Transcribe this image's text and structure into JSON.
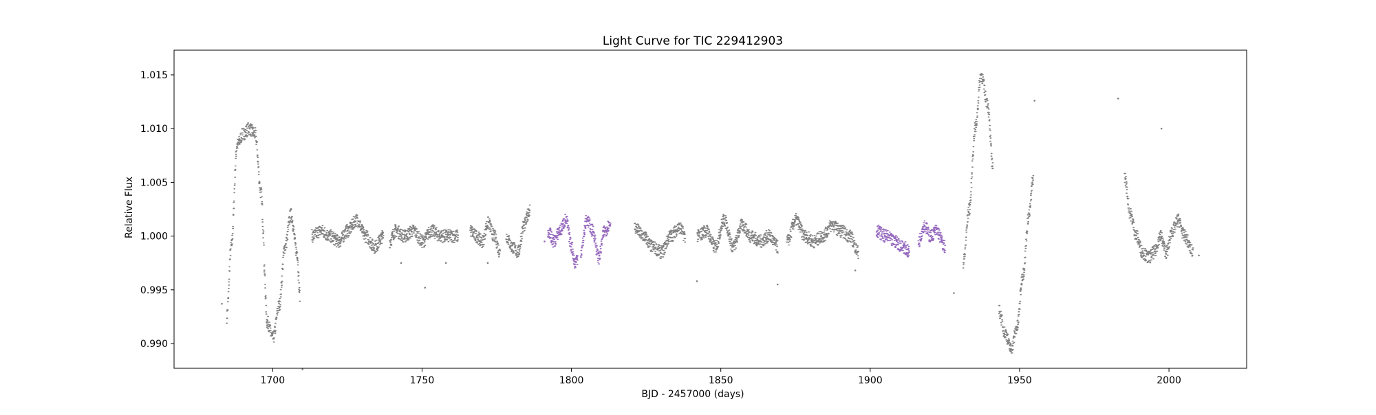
{
  "chart_data": {
    "type": "scatter",
    "title": "Light Curve for TIC 229412903",
    "xlabel": "BJD - 2457000 (days)",
    "ylabel": "Relative Flux",
    "xlim": [
      1667,
      2026
    ],
    "ylim": [
      0.9877,
      1.0173
    ],
    "xticks": [
      1700,
      1750,
      1800,
      1850,
      1900,
      1950,
      2000
    ],
    "xtick_labels": [
      "1700",
      "1750",
      "1800",
      "1850",
      "1900",
      "1950",
      "2000"
    ],
    "yticks": [
      0.99,
      0.995,
      1.0,
      1.005,
      1.01,
      1.015
    ],
    "ytick_labels": [
      "0.990",
      "0.995",
      "1.000",
      "1.005",
      "1.010",
      "1.015"
    ],
    "grid": false,
    "legend": "none",
    "colors": {
      "default": "#808080",
      "highlight": "#9467bd"
    },
    "series": [
      {
        "color": "default",
        "segments": [
          {
            "x": [
              1684.5,
              1686,
              1688,
              1690,
              1692,
              1694,
              1696,
              1697
            ],
            "y": [
              0.9925,
              0.999,
              1.0085,
              1.0095,
              1.01,
              1.0095,
              1.004,
              0.9995
            ]
          },
          {
            "x": [
              1697,
              1698,
              1700,
              1702,
              1704,
              1706,
              1708,
              1709
            ],
            "y": [
              0.997,
              0.992,
              0.9905,
              0.9935,
              0.999,
              1.002,
              0.9985,
              0.9945
            ]
          },
          {
            "x": [
              1713,
              1716,
              1719,
              1722,
              1725,
              1728,
              1731,
              1734,
              1737
            ],
            "y": [
              1.0,
              1.0005,
              1.0,
              0.9995,
              1.0005,
              1.0015,
              1.0,
              0.999,
              1.0
            ]
          },
          {
            "x": [
              1739,
              1741,
              1744,
              1747,
              1750,
              1753,
              1756,
              1759,
              1762
            ],
            "y": [
              0.9995,
              1.0005,
              1.0,
              1.0005,
              0.9995,
              1.0005,
              1.0,
              1.0,
              1.0
            ]
          },
          {
            "x": [
              1766,
              1768,
              1770,
              1772,
              1774,
              1776
            ],
            "y": [
              1.0005,
              1.0,
              0.9995,
              1.0012,
              1.0,
              0.9985
            ]
          },
          {
            "x": [
              1778,
              1780,
              1782,
              1784,
              1786
            ],
            "y": [
              1.0,
              0.999,
              0.9985,
              1.001,
              1.0025
            ]
          },
          {
            "x": [
              1821,
              1824,
              1827,
              1830,
              1833,
              1836,
              1838
            ],
            "y": [
              1.0008,
              1.0,
              0.999,
              0.9985,
              1.0,
              1.0008,
              1.0
            ]
          },
          {
            "x": [
              1842,
              1845,
              1848,
              1851,
              1854,
              1857,
              1860,
              1863,
              1866,
              1869
            ],
            "y": [
              1.0,
              1.0005,
              0.999,
              1.0015,
              0.999,
              1.001,
              1.0,
              0.9995,
              1.0,
              0.999
            ]
          },
          {
            "x": [
              1872,
              1875,
              1878,
              1881,
              1884,
              1887,
              1890,
              1893,
              1896
            ],
            "y": [
              0.9995,
              1.0015,
              1.0,
              0.9995,
              1.0,
              1.001,
              1.0005,
              1.0,
              0.9985
            ]
          },
          {
            "x": [
              1931,
              1933,
              1935,
              1937,
              1939,
              1941
            ],
            "y": [
              0.9975,
              1.0025,
              1.01,
              1.015,
              1.0125,
              1.0065
            ]
          },
          {
            "x": [
              1943,
              1945,
              1947,
              1949,
              1951,
              1953,
              1954.5
            ],
            "y": [
              0.993,
              0.991,
              0.9895,
              0.9915,
              0.9965,
              1.002,
              1.0055
            ]
          },
          {
            "x": [
              1985,
              1987,
              1989,
              1991,
              1993,
              1995,
              1997,
              1999,
              2001,
              2003,
              2005,
              2008
            ],
            "y": [
              1.0055,
              1.002,
              1.0,
              0.9985,
              0.998,
              0.9985,
              1.0,
              0.9985,
              1.0005,
              1.0015,
              1.0,
              0.9985
            ]
          }
        ],
        "outliers": {
          "x": [
            1683,
            1710,
            1743,
            1751,
            1758,
            1772,
            1842,
            1869,
            1895,
            1928,
            1955,
            1983,
            1997.5,
            2010
          ],
          "y": [
            0.9937,
            0.9876,
            0.9975,
            0.9952,
            0.9975,
            0.9975,
            0.9958,
            0.9955,
            0.9968,
            0.9947,
            1.0126,
            1.0128,
            1.01,
            0.9982
          ]
        }
      },
      {
        "color": "highlight",
        "segments": [
          {
            "x": [
              1792,
              1794,
              1796,
              1798,
              1800,
              1801,
              1802
            ],
            "y": [
              1.0005,
              0.9995,
              1.0005,
              1.0015,
              0.999,
              0.9975,
              0.998
            ]
          },
          {
            "x": [
              1803,
              1805,
              1807,
              1809,
              1811,
              1813
            ],
            "y": [
              0.9985,
              1.0015,
              1.0005,
              0.998,
              1.0005,
              1.0012
            ]
          },
          {
            "x": [
              1902,
              1905,
              1908,
              1911,
              1913
            ],
            "y": [
              1.0005,
              1.0,
              0.9995,
              0.999,
              0.9985
            ]
          },
          {
            "x": [
              1916,
              1918,
              1920,
              1922,
              1925
            ],
            "y": [
              0.9995,
              1.001,
              1.0,
              1.0005,
              0.999
            ]
          }
        ],
        "outliers": {
          "x": [
            1791
          ],
          "y": [
            0.9995
          ]
        }
      }
    ]
  }
}
